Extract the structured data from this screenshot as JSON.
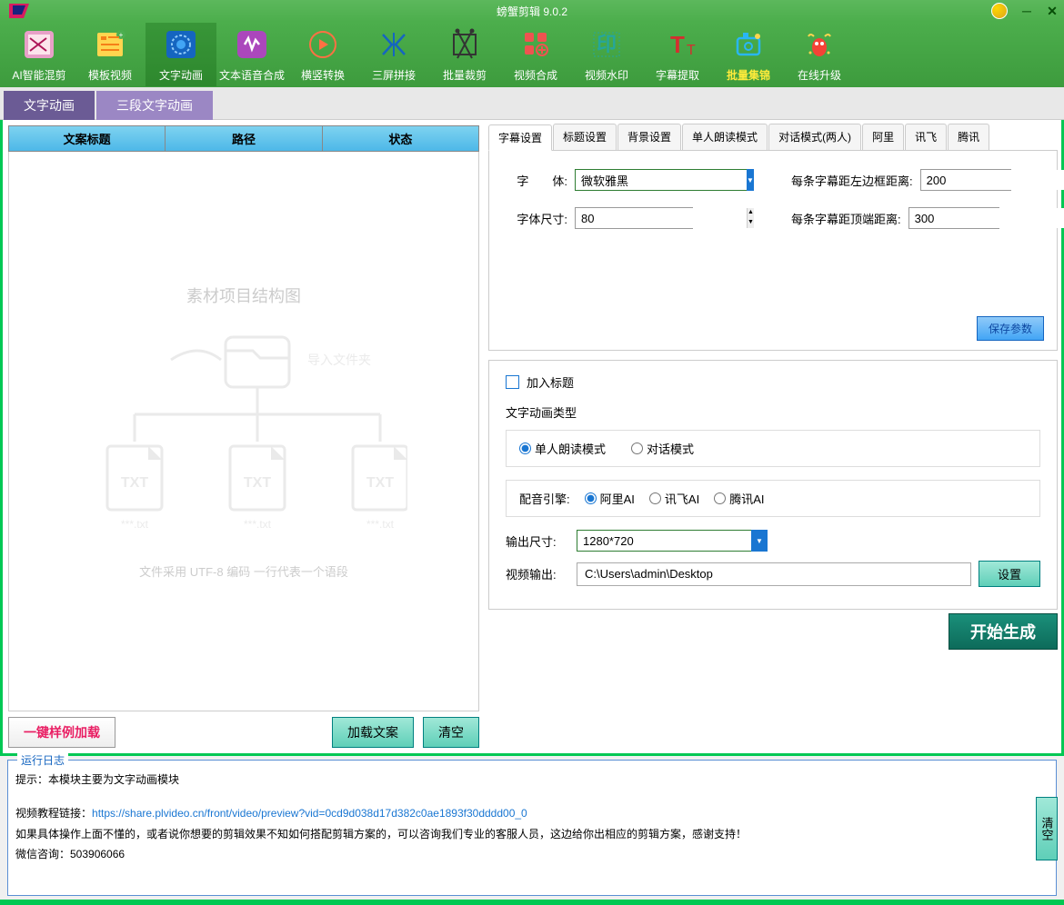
{
  "app": {
    "title": "螃蟹剪辑 9.0.2"
  },
  "toolbar": [
    {
      "id": "ai-mix",
      "label": "AI智能混剪",
      "color": "#e8a0c8"
    },
    {
      "id": "template",
      "label": "模板视频",
      "color": "#ffd54f"
    },
    {
      "id": "text-anim",
      "label": "文字动画",
      "color": "#1976d2",
      "active": true
    },
    {
      "id": "tts",
      "label": "文本语音合成",
      "color": "#ab47bc"
    },
    {
      "id": "rotate",
      "label": "横竖转换",
      "color": "#ff7043"
    },
    {
      "id": "triple",
      "label": "三屏拼接",
      "color": "#1565c0"
    },
    {
      "id": "batch-crop",
      "label": "批量裁剪",
      "color": "#333"
    },
    {
      "id": "video-merge",
      "label": "视频合成",
      "color": "#ef5350"
    },
    {
      "id": "watermark",
      "label": "视频水印",
      "color": "#26a69a"
    },
    {
      "id": "subtitle",
      "label": "字幕提取",
      "color": "#d32f2f"
    },
    {
      "id": "batch-col",
      "label": "批量集锦",
      "color": "#29b6f6",
      "highlight": true
    },
    {
      "id": "upgrade",
      "label": "在线升级",
      "color": "#f44336"
    }
  ],
  "subtabs": {
    "t1": "文字动画",
    "t2": "三段文字动画"
  },
  "table": {
    "c1": "文案标题",
    "c2": "路径",
    "c3": "状态"
  },
  "watermark": {
    "title": "素材项目结构图",
    "import": "导入文件夹",
    "file": "***.txt",
    "note": "文件采用 UTF-8 编码 一行代表一个语段"
  },
  "left_btns": {
    "sample": "一键样例加载",
    "load": "加载文案",
    "clear": "清空"
  },
  "config_tabs": [
    "字幕设置",
    "标题设置",
    "背景设置",
    "单人朗读模式",
    "对话模式(两人)",
    "阿里",
    "讯飞",
    "腾讯"
  ],
  "subtitle_cfg": {
    "font_label": "字　　体:",
    "font_value": "微软雅黑",
    "fontsize_label": "字体尺寸:",
    "fontsize_value": "80",
    "left_margin_label": "每条字幕距左边框距离:",
    "left_margin_value": "200",
    "top_margin_label": "每条字幕距顶端距离:",
    "top_margin_value": "300",
    "save": "保存参数"
  },
  "options": {
    "add_title": "加入标题",
    "anim_type_label": "文字动画类型",
    "mode_single": "单人朗读模式",
    "mode_dialog": "对话模式",
    "engine_label": "配音引擎:",
    "engine_ali": "阿里AI",
    "engine_xf": "讯飞AI",
    "engine_tx": "腾讯AI",
    "out_size_label": "输出尺寸:",
    "out_size_value": "1280*720",
    "out_path_label": "视频输出:",
    "out_path_value": "C:\\Users\\admin\\Desktop",
    "set_btn": "设置",
    "start": "开始生成"
  },
  "log": {
    "legend": "运行日志",
    "tip": "提示：本模块主要为文字动画模块",
    "link_label": "视频教程链接：",
    "link": "https://share.plvideo.cn/front/video/preview?vid=0cd9d038d17d382c0ae1893f30dddd00_0",
    "help": "如果具体操作上面不懂的，或者说你想要的剪辑效果不知如何搭配剪辑方案的，可以咨询我们专业的客服人员，这边给你出相应的剪辑方案，感谢支持！",
    "wx": "微信咨询：503906066",
    "clear": "清空"
  }
}
